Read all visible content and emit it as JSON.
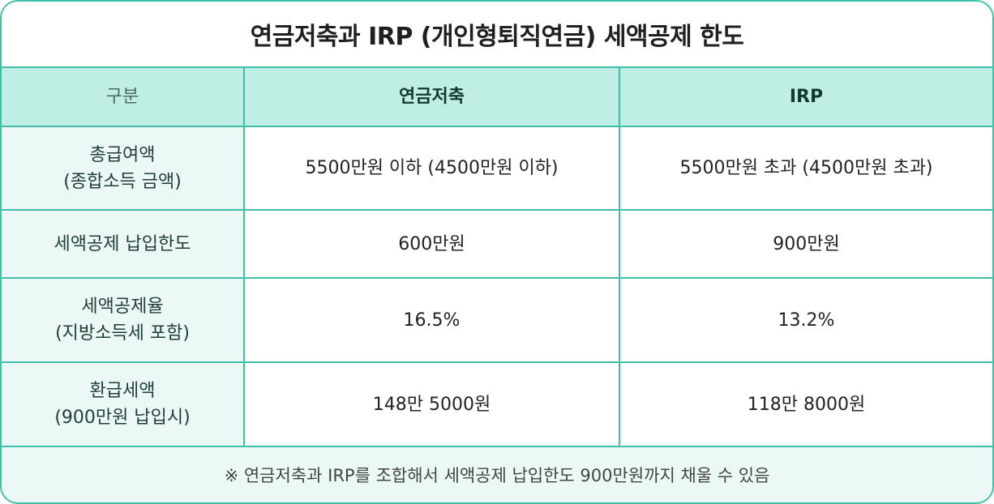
{
  "title": "연금저축과 IRP (개인형퇴직연금) 세액공제 한도",
  "table": {
    "headers": [
      "구분",
      "연금저축",
      "IRP"
    ],
    "rows": [
      {
        "label": "총급여액\n(종합소득 금액)",
        "pension": "5500만원 이하 (4500만원 이하)",
        "irp": "5500만원 초과 (4500만원 초과)"
      },
      {
        "label": "세액공제 납입한도",
        "pension": "600만원",
        "irp": "900만원"
      },
      {
        "label": "세액공제율\n(지방소득세 포함)",
        "pension": "16.5%",
        "irp": "13.2%"
      },
      {
        "label": "환급세액\n(900만원 납입시)",
        "pension": "148만 5000원",
        "irp": "118만 8000원"
      }
    ]
  },
  "footnote": "※ 연금저축과 IRP를 조합해서 세액공제 납입한도 900만원까지 채울 수 있음",
  "colors": {
    "border": "#3fbfa5",
    "header_bg": "#bfeee5",
    "label_bg": "#ebf8f5"
  }
}
